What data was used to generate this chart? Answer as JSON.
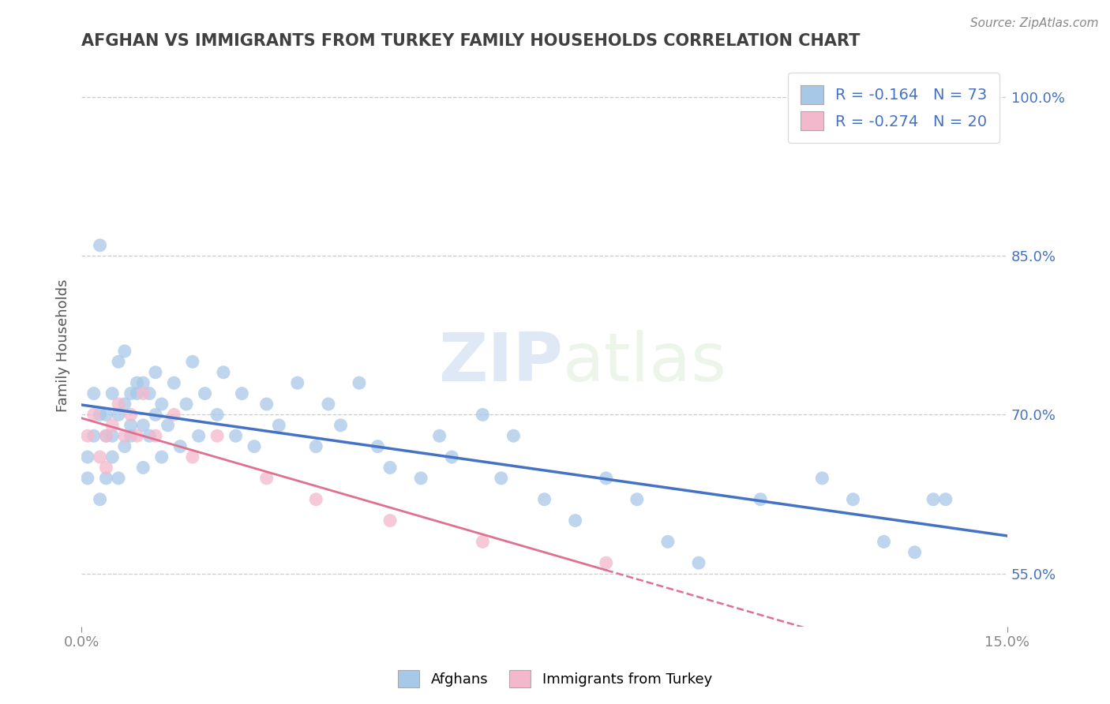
{
  "title": "AFGHAN VS IMMIGRANTS FROM TURKEY FAMILY HOUSEHOLDS CORRELATION CHART",
  "source": "Source: ZipAtlas.com",
  "ylabel": "Family Households",
  "xlim": [
    0.0,
    0.15
  ],
  "ylim": [
    0.5,
    1.03
  ],
  "yticks": [
    0.55,
    0.7,
    0.85,
    1.0
  ],
  "ytick_labels": [
    "55.0%",
    "70.0%",
    "85.0%",
    "100.0%"
  ],
  "watermark_zip": "ZIP",
  "watermark_atlas": "atlas",
  "legend_r1": "-0.164",
  "legend_n1": "73",
  "legend_r2": "-0.274",
  "legend_n2": "20",
  "legend_label1": "Afghans",
  "legend_label2": "Immigrants from Turkey",
  "color_blue": "#a8c8e8",
  "color_pink": "#f4b8cc",
  "line_blue": "#4472c4",
  "line_pink": "#e07090",
  "line_pink_dashed": "#d09090",
  "title_color": "#404040",
  "source_color": "#888888",
  "stat_value_color": "#4472c4",
  "stat_label_color": "#333333",
  "background": "#ffffff",
  "grid_color": "#cccccc",
  "afghans_x": [
    0.001,
    0.001,
    0.002,
    0.002,
    0.003,
    0.003,
    0.003,
    0.004,
    0.004,
    0.004,
    0.005,
    0.005,
    0.005,
    0.006,
    0.006,
    0.006,
    0.007,
    0.007,
    0.007,
    0.008,
    0.008,
    0.008,
    0.009,
    0.009,
    0.01,
    0.01,
    0.01,
    0.011,
    0.011,
    0.012,
    0.012,
    0.013,
    0.013,
    0.014,
    0.015,
    0.016,
    0.017,
    0.018,
    0.019,
    0.02,
    0.022,
    0.023,
    0.025,
    0.026,
    0.028,
    0.03,
    0.032,
    0.035,
    0.038,
    0.04,
    0.042,
    0.045,
    0.048,
    0.05,
    0.055,
    0.058,
    0.06,
    0.065,
    0.068,
    0.07,
    0.075,
    0.08,
    0.085,
    0.09,
    0.095,
    0.1,
    0.11,
    0.12,
    0.125,
    0.13,
    0.135,
    0.138,
    0.14
  ],
  "afghans_y": [
    0.64,
    0.66,
    0.68,
    0.72,
    0.7,
    0.62,
    0.86,
    0.64,
    0.68,
    0.7,
    0.66,
    0.68,
    0.72,
    0.64,
    0.7,
    0.75,
    0.67,
    0.71,
    0.76,
    0.68,
    0.72,
    0.69,
    0.73,
    0.72,
    0.65,
    0.69,
    0.73,
    0.68,
    0.72,
    0.7,
    0.74,
    0.66,
    0.71,
    0.69,
    0.73,
    0.67,
    0.71,
    0.75,
    0.68,
    0.72,
    0.7,
    0.74,
    0.68,
    0.72,
    0.67,
    0.71,
    0.69,
    0.73,
    0.67,
    0.71,
    0.69,
    0.73,
    0.67,
    0.65,
    0.64,
    0.68,
    0.66,
    0.7,
    0.64,
    0.68,
    0.62,
    0.6,
    0.64,
    0.62,
    0.58,
    0.56,
    0.62,
    0.64,
    0.62,
    0.58,
    0.57,
    0.62,
    0.62
  ],
  "turkey_x": [
    0.001,
    0.002,
    0.003,
    0.004,
    0.004,
    0.005,
    0.006,
    0.007,
    0.008,
    0.009,
    0.01,
    0.012,
    0.015,
    0.018,
    0.022,
    0.03,
    0.038,
    0.05,
    0.065,
    0.085
  ],
  "turkey_y": [
    0.68,
    0.7,
    0.66,
    0.65,
    0.68,
    0.69,
    0.71,
    0.68,
    0.7,
    0.68,
    0.72,
    0.68,
    0.7,
    0.66,
    0.68,
    0.64,
    0.62,
    0.6,
    0.58,
    0.56
  ]
}
